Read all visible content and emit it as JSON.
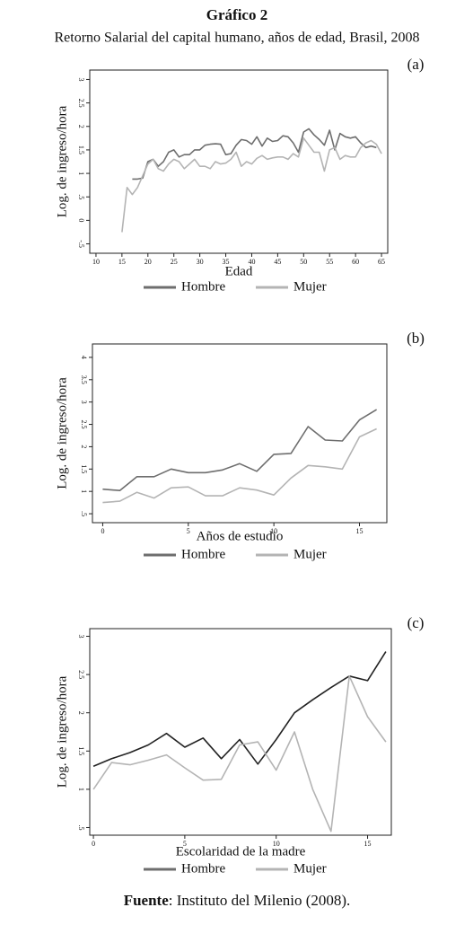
{
  "header": {
    "title": "Gráfico 2",
    "subtitle": "Retorno Salarial del capital humano, años de edad, Brasil, 2008"
  },
  "source": {
    "label": "Fuente",
    "text": ": Instituto del Milenio (2008)."
  },
  "chart_data": [
    {
      "type": "line",
      "panel": "(a)",
      "xlabel": "Edad",
      "ylabel": "Log. de ingreso/hora",
      "x": [
        15,
        16,
        17,
        18,
        19,
        20,
        21,
        22,
        23,
        24,
        25,
        26,
        27,
        28,
        29,
        30,
        31,
        32,
        33,
        34,
        35,
        36,
        37,
        38,
        39,
        40,
        41,
        42,
        43,
        44,
        45,
        46,
        47,
        48,
        49,
        50,
        51,
        52,
        53,
        54,
        55,
        56,
        57,
        58,
        59,
        60,
        61,
        62,
        63,
        64,
        65
      ],
      "series": [
        {
          "name": "Hombre",
          "color": "#6e6e6e",
          "values": [
            null,
            null,
            0.88,
            0.88,
            0.9,
            1.25,
            1.3,
            1.15,
            1.25,
            1.45,
            1.5,
            1.35,
            1.4,
            1.4,
            1.5,
            1.5,
            1.6,
            1.62,
            1.63,
            1.62,
            1.4,
            1.42,
            1.6,
            1.72,
            1.7,
            1.62,
            1.78,
            1.58,
            1.75,
            1.68,
            1.7,
            1.8,
            1.78,
            1.65,
            1.45,
            1.88,
            1.95,
            1.82,
            1.72,
            1.6,
            1.92,
            1.5,
            1.85,
            1.78,
            1.75,
            1.78,
            1.65,
            1.55,
            1.58,
            1.55,
            null
          ]
        },
        {
          "name": "Mujer",
          "color": "#b4b4b4",
          "values": [
            -0.25,
            0.7,
            0.55,
            0.7,
            0.95,
            1.2,
            1.3,
            1.1,
            1.05,
            1.2,
            1.3,
            1.25,
            1.1,
            1.2,
            1.3,
            1.15,
            1.15,
            1.1,
            1.25,
            1.2,
            1.22,
            1.3,
            1.45,
            1.15,
            1.25,
            1.2,
            1.32,
            1.38,
            1.3,
            1.33,
            1.35,
            1.35,
            1.3,
            1.42,
            1.35,
            1.75,
            1.6,
            1.45,
            1.45,
            1.05,
            1.5,
            1.55,
            1.3,
            1.38,
            1.35,
            1.35,
            1.55,
            1.65,
            1.7,
            1.62,
            1.42
          ]
        }
      ],
      "xlim": [
        8.8,
        66.2
      ],
      "xticks": [
        10,
        15,
        20,
        25,
        30,
        35,
        40,
        45,
        50,
        55,
        60,
        65
      ],
      "ylim": [
        -0.7,
        3.2
      ],
      "yticks": [
        {
          "value": -0.5,
          "label": "-.5"
        },
        0,
        {
          "value": 0.5,
          "label": ".5"
        },
        1,
        1.5,
        2,
        2.5,
        3
      ]
    },
    {
      "type": "line",
      "panel": "(b)",
      "xlabel": "Años de estudio",
      "ylabel": "Log. de ingreso/hora",
      "x": [
        0,
        1,
        2,
        3,
        4,
        5,
        6,
        7,
        8,
        9,
        10,
        11,
        12,
        13,
        14,
        15,
        16
      ],
      "series": [
        {
          "name": "Hombre",
          "color": "#6e6e6e",
          "values": [
            1.05,
            1.02,
            1.33,
            1.33,
            1.5,
            1.42,
            1.42,
            1.48,
            1.62,
            1.45,
            1.83,
            1.85,
            2.45,
            2.15,
            2.13,
            2.6,
            2.83
          ]
        },
        {
          "name": "Mujer",
          "color": "#b4b4b4",
          "values": [
            0.75,
            0.78,
            0.98,
            0.85,
            1.08,
            1.1,
            0.9,
            0.9,
            1.08,
            1.03,
            0.92,
            1.3,
            1.58,
            1.55,
            1.5,
            2.22,
            2.4
          ]
        }
      ],
      "xlim": [
        -0.6,
        16.6
      ],
      "xticks": [
        0,
        5,
        10,
        15
      ],
      "ylim": [
        0.3,
        4.3
      ],
      "yticks": [
        {
          "value": 0.5,
          "label": ".5"
        },
        1,
        1.5,
        2,
        2.5,
        3,
        3.5,
        4
      ]
    },
    {
      "type": "line",
      "panel": "(c)",
      "xlabel": "Escolaridad de la madre",
      "ylabel": "Log. de ingreso/hora",
      "x": [
        0,
        1,
        2,
        3,
        4,
        5,
        6,
        7,
        8,
        9,
        10,
        11,
        12,
        13,
        14,
        15,
        16
      ],
      "series": [
        {
          "name": "Hombre",
          "color": "#6e6e6e",
          "line_color": "#222222",
          "values": [
            1.3,
            1.4,
            1.48,
            1.58,
            1.73,
            1.55,
            1.67,
            1.4,
            1.65,
            1.33,
            1.65,
            2.0,
            2.17,
            2.33,
            2.48,
            2.42,
            2.8
          ]
        },
        {
          "name": "Mujer",
          "color": "#b4b4b4",
          "values": [
            1.0,
            1.35,
            1.32,
            1.38,
            1.45,
            1.28,
            1.12,
            1.13,
            1.58,
            1.62,
            1.25,
            1.75,
            1.0,
            0.45,
            2.48,
            1.95,
            1.62
          ]
        }
      ],
      "xlim": [
        -0.2,
        16.3
      ],
      "xticks": [
        0,
        5,
        10,
        15
      ],
      "ylim": [
        0.4,
        3.1
      ],
      "yticks": [
        {
          "value": 0.5,
          "label": ".5"
        },
        1,
        1.5,
        2,
        2.5,
        3
      ]
    }
  ]
}
